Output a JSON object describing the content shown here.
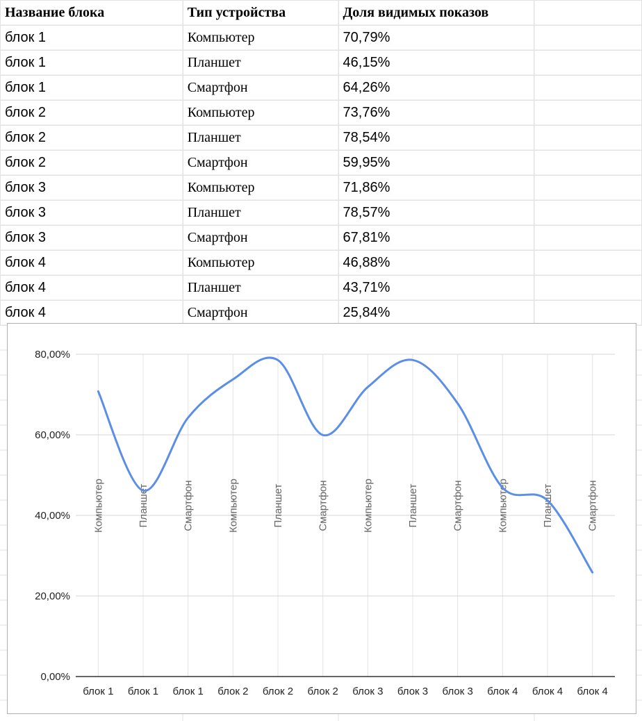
{
  "table": {
    "headers": [
      "Название блока",
      "Тип устройства",
      "Доля видимых показов",
      ""
    ],
    "rows": [
      [
        "блок 1",
        "Компьютер",
        "70,79%"
      ],
      [
        "блок 1",
        "Планшет",
        "46,15%"
      ],
      [
        "блок 1",
        "Смартфон",
        "64,26%"
      ],
      [
        "блок 2",
        "Компьютер",
        "73,76%"
      ],
      [
        "блок 2",
        "Планшет",
        "78,54%"
      ],
      [
        "блок 2",
        "Смартфон",
        "59,95%"
      ],
      [
        "блок 3",
        "Компьютер",
        "71,86%"
      ],
      [
        "блок 3",
        "Планшет",
        "78,57%"
      ],
      [
        "блок 3",
        "Смартфон",
        "67,81%"
      ],
      [
        "блок 4",
        "Компьютер",
        "46,88%"
      ],
      [
        "блок 4",
        "Планшет",
        "43,71%"
      ],
      [
        "блок 4",
        "Смартфон",
        "25,84%"
      ]
    ]
  },
  "chart_data": {
    "type": "line",
    "smooth": true,
    "categories": [
      "блок 1",
      "блок 1",
      "блок 1",
      "блок 2",
      "блок 2",
      "блок 2",
      "блок 3",
      "блок 3",
      "блок 3",
      "блок 4",
      "блок 4",
      "блок 4"
    ],
    "inner_labels": [
      "Компьютер",
      "Планшет",
      "Смартфон",
      "Компьютер",
      "Планшет",
      "Смартфон",
      "Компьютер",
      "Планшет",
      "Смартфон",
      "Компьютер",
      "Планшет",
      "Смартфон"
    ],
    "series": [
      {
        "values": [
          70.79,
          46.15,
          64.26,
          73.76,
          78.54,
          59.95,
          71.86,
          78.57,
          67.81,
          46.88,
          43.71,
          25.84
        ],
        "color": "#5b8ee6"
      }
    ],
    "ylim": [
      0,
      80
    ],
    "yticks": [
      0,
      20,
      40,
      60,
      80
    ],
    "ytick_labels": [
      "0,00%",
      "20,00%",
      "40,00%",
      "60,00%",
      "80,00%"
    ],
    "title": "",
    "xlabel": "",
    "ylabel": "",
    "grid": true,
    "legend": "none"
  }
}
